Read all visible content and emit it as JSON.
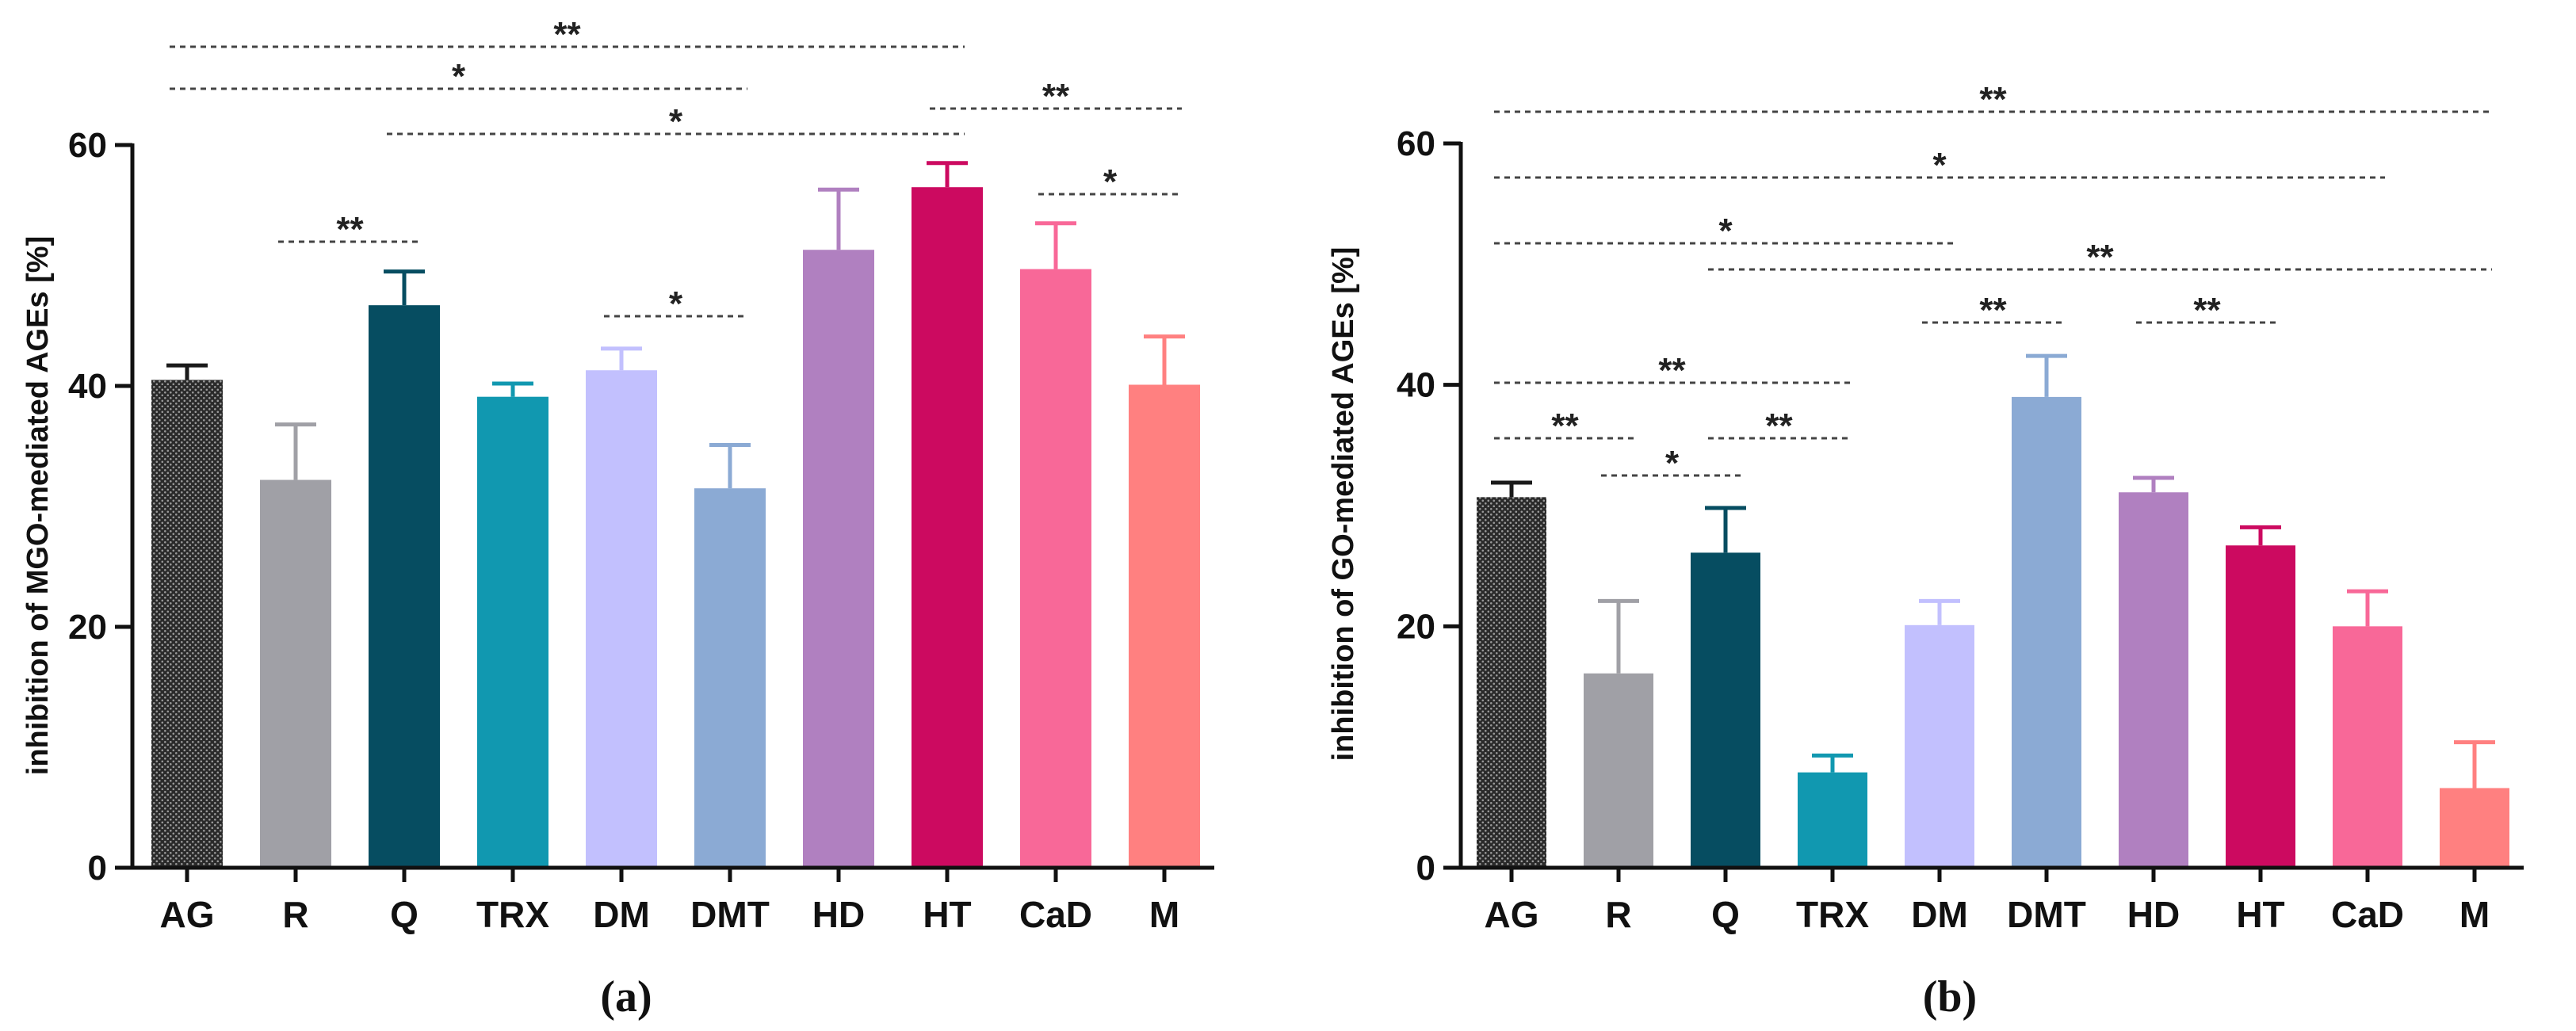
{
  "chart_data": [
    {
      "type": "bar",
      "panel_label": "(a)",
      "ylabel": "inhibition of MGO-mediated AGEs [%]",
      "ylim": [
        0,
        60
      ],
      "yticks": [
        0,
        20,
        40,
        60
      ],
      "categories": [
        "AG",
        "R",
        "Q",
        "TRX",
        "DM",
        "DMT",
        "HD",
        "HT",
        "CaD",
        "M"
      ],
      "values": [
        40.5,
        32.2,
        46.7,
        39.1,
        41.3,
        31.5,
        51.3,
        56.5,
        49.7,
        40.1
      ],
      "errors": [
        1.2,
        4.6,
        2.8,
        1.1,
        1.8,
        3.6,
        5.0,
        2.0,
        3.8,
        4.0
      ],
      "colors": [
        "#1a1a1a",
        "#a0a0a6",
        "#064d61",
        "#1198b0",
        "#c2c0fe",
        "#8baad4",
        "#b080c0",
        "#cc0a60",
        "#f86898",
        "#ff8080"
      ],
      "significance": [
        {
          "from": "AG",
          "to": "HT",
          "label": "**"
        },
        {
          "from": "AG",
          "to": "DMT",
          "label": "*"
        },
        {
          "from": "Q",
          "to": "HT",
          "label": "*"
        },
        {
          "from": "HT",
          "to": "M",
          "label": "**"
        },
        {
          "from": "R",
          "to": "Q",
          "label": "**"
        },
        {
          "from": "DM",
          "to": "DMT",
          "label": "*"
        },
        {
          "from": "CaD",
          "to": "M",
          "label": "*"
        }
      ]
    },
    {
      "type": "bar",
      "panel_label": "(b)",
      "ylabel": "inhibition of GO-mediated AGEs [%]",
      "ylim": [
        0,
        60
      ],
      "yticks": [
        0,
        20,
        40,
        60
      ],
      "categories": [
        "AG",
        "R",
        "Q",
        "TRX",
        "DM",
        "DMT",
        "HD",
        "HT",
        "CaD",
        "M"
      ],
      "values": [
        30.7,
        16.1,
        26.1,
        7.9,
        20.1,
        39.0,
        31.1,
        26.7,
        20.0,
        6.6
      ],
      "errors": [
        1.2,
        6.0,
        3.7,
        1.4,
        2.0,
        3.4,
        1.2,
        1.5,
        2.9,
        3.8
      ],
      "colors": [
        "#1a1a1a",
        "#a0a0a6",
        "#064d61",
        "#1198b0",
        "#c2c0fe",
        "#8baad4",
        "#b080c0",
        "#cc0a60",
        "#f86898",
        "#ff8080"
      ],
      "significance": [
        {
          "from": "AG",
          "to": "M",
          "label": "**"
        },
        {
          "from": "AG",
          "to": "CaD",
          "label": "*"
        },
        {
          "from": "AG",
          "to": "DM",
          "label": "*"
        },
        {
          "from": "Q",
          "to": "M",
          "label": "**"
        },
        {
          "from": "DM",
          "to": "DMT",
          "label": "**"
        },
        {
          "from": "HD",
          "to": "HT",
          "label": "**"
        },
        {
          "from": "AG",
          "to": "TRX",
          "label": "**"
        },
        {
          "from": "AG",
          "to": "R",
          "label": "**"
        },
        {
          "from": "R",
          "to": "Q",
          "label": "*"
        },
        {
          "from": "Q",
          "to": "TRX",
          "label": "**"
        }
      ]
    }
  ]
}
